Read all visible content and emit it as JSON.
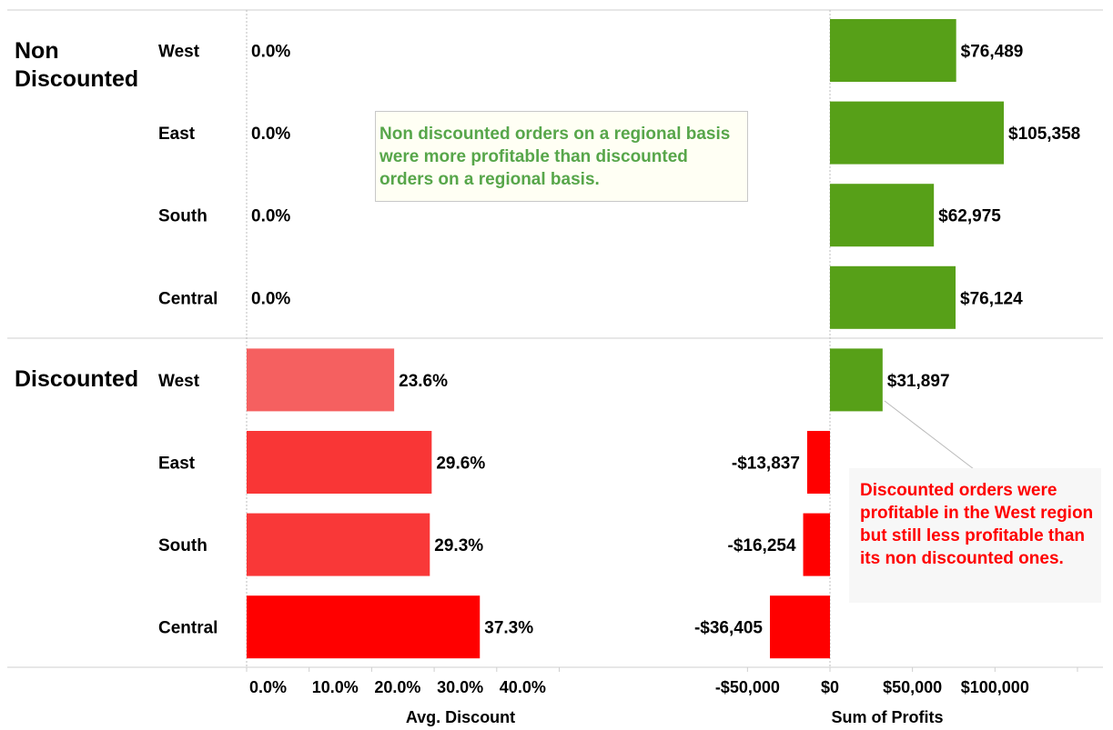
{
  "chart_data": {
    "type": "bar",
    "groups": [
      {
        "label": "Non Discounted",
        "rows": [
          {
            "region": "West",
            "avg_discount": 0.0,
            "avg_discount_label": "0.0%",
            "profit": 76489,
            "profit_label": "$76,489"
          },
          {
            "region": "East",
            "avg_discount": 0.0,
            "avg_discount_label": "0.0%",
            "profit": 105358,
            "profit_label": "$105,358"
          },
          {
            "region": "South",
            "avg_discount": 0.0,
            "avg_discount_label": "0.0%",
            "profit": 62975,
            "profit_label": "$62,975"
          },
          {
            "region": "Central",
            "avg_discount": 0.0,
            "avg_discount_label": "0.0%",
            "profit": 76124,
            "profit_label": "$76,124"
          }
        ]
      },
      {
        "label": "Discounted",
        "rows": [
          {
            "region": "West",
            "avg_discount": 23.6,
            "avg_discount_label": "23.6%",
            "profit": 31897,
            "profit_label": "$31,897"
          },
          {
            "region": "East",
            "avg_discount": 29.6,
            "avg_discount_label": "29.6%",
            "profit": -13837,
            "profit_label": "-$13,837"
          },
          {
            "region": "South",
            "avg_discount": 29.3,
            "avg_discount_label": "29.3%",
            "profit": -16254,
            "profit_label": "-$16,254"
          },
          {
            "region": "Central",
            "avg_discount": 37.3,
            "avg_discount_label": "37.3%",
            "profit": -36405,
            "profit_label": "-$36,405"
          }
        ]
      }
    ],
    "discount_axis": {
      "title": "Avg. Discount",
      "range": [
        0,
        50
      ],
      "ticks": [
        0,
        10,
        20,
        30,
        40
      ],
      "tick_labels": [
        "0.0%",
        "10.0%",
        "20.0%",
        "30.0%",
        "40.0%"
      ]
    },
    "profit_axis": {
      "title": "Sum of Profits",
      "range": [
        -70000,
        150000
      ],
      "ticks": [
        -50000,
        0,
        50000,
        100000
      ],
      "tick_labels": [
        "-$50,000",
        "$0",
        "$50,000",
        "$100,000"
      ]
    },
    "colors": {
      "profit_positive": "#57a018",
      "profit_negative": "#ff0000",
      "discount_low": "#f56060",
      "discount_high": "#ff0000"
    }
  },
  "annotations": {
    "green_note": "Non discounted orders on a regional basis were more profitable than discounted orders on a regional basis.",
    "red_note": "Discounted orders were profitable in the West region but still less profitable than its non discounted ones."
  }
}
